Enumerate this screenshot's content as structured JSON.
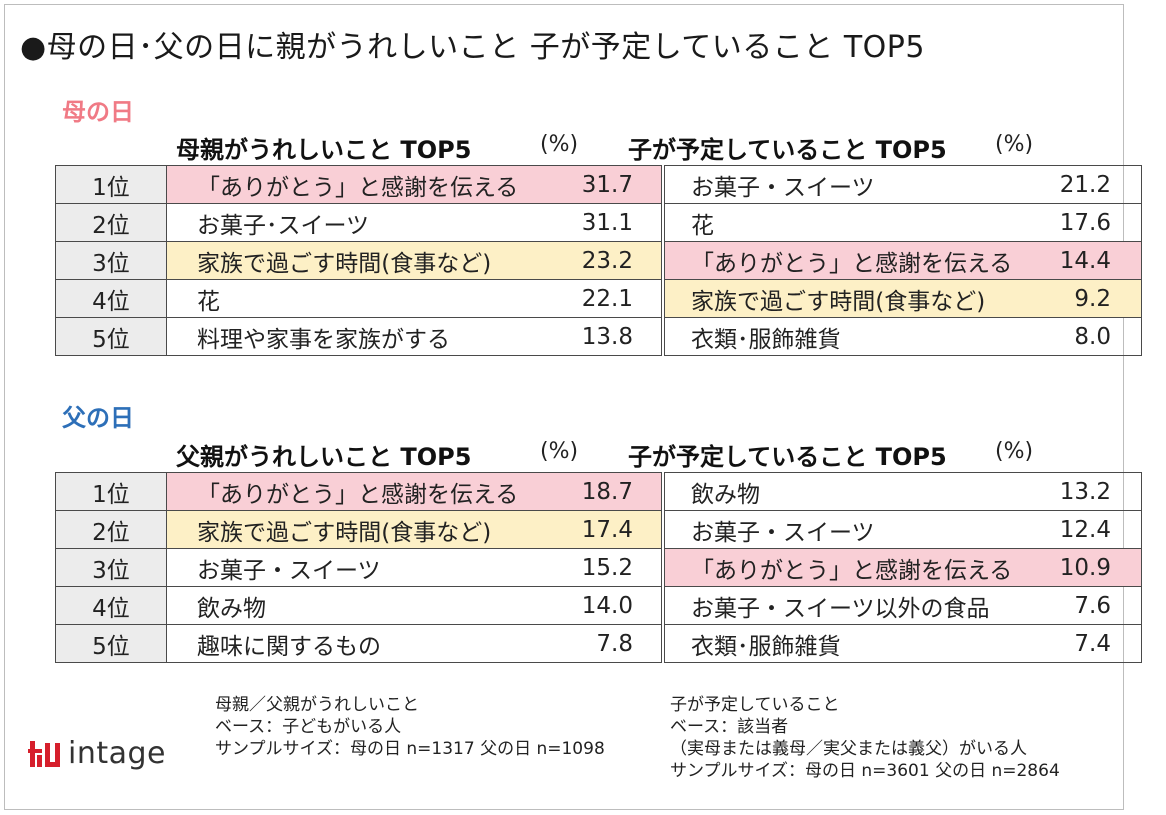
{
  "title": "●母の日･父の日に親がうれしいこと 子が予定していること TOP5",
  "sections": [
    {
      "label": "母の日",
      "left_header": "母親がうれしいこと TOP5",
      "right_header": "子が予定していること TOP5",
      "unit": "(%)",
      "rows": [
        {
          "rank": "1位",
          "parent_item": "「ありがとう」と感謝を伝える",
          "parent_value": "31.7",
          "child_item": "お菓子・スイーツ",
          "child_value": "21.2"
        },
        {
          "rank": "2位",
          "parent_item": "お菓子･スイーツ",
          "parent_value": "31.1",
          "child_item": "花",
          "child_value": "17.6"
        },
        {
          "rank": "3位",
          "parent_item": "家族で過ごす時間(食事など)",
          "parent_value": "23.2",
          "child_item": "「ありがとう」と感謝を伝える",
          "child_value": "14.4"
        },
        {
          "rank": "4位",
          "parent_item": "花",
          "parent_value": "22.1",
          "child_item": "家族で過ごす時間(食事など)",
          "child_value": "9.2"
        },
        {
          "rank": "5位",
          "parent_item": "料理や家事を家族がする",
          "parent_value": "13.8",
          "child_item": "衣類･服飾雑貨",
          "child_value": "8.0"
        }
      ]
    },
    {
      "label": "父の日",
      "left_header": "父親がうれしいこと TOP5",
      "right_header": "子が予定していること TOP5",
      "unit": "(%)",
      "rows": [
        {
          "rank": "1位",
          "parent_item": "「ありがとう」と感謝を伝える",
          "parent_value": "18.7",
          "child_item": "飲み物",
          "child_value": "13.2"
        },
        {
          "rank": "2位",
          "parent_item": "家族で過ごす時間(食事など)",
          "parent_value": "17.4",
          "child_item": "お菓子・スイーツ",
          "child_value": "12.4"
        },
        {
          "rank": "3位",
          "parent_item": "お菓子・スイーツ",
          "parent_value": "15.2",
          "child_item": "「ありがとう」と感謝を伝える",
          "child_value": "10.9"
        },
        {
          "rank": "4位",
          "parent_item": "飲み物",
          "parent_value": "14.0",
          "child_item": "お菓子・スイーツ以外の食品",
          "child_value": "7.6"
        },
        {
          "rank": "5位",
          "parent_item": "趣味に関するもの",
          "parent_value": "7.8",
          "child_item": "衣類･服飾雑貨",
          "child_value": "7.4"
        }
      ]
    }
  ],
  "notes_left": [
    "母親／父親がうれしいこと",
    "ベース：子どもがいる人",
    "サンプルサイズ：母の日 n=1317 父の日 n=1098"
  ],
  "notes_right": [
    "子が予定していること",
    "ベース：該当者",
    "（実母または義母／実父または義父）がいる人",
    "サンプルサイズ：母の日 n=3601 父の日 n=2864"
  ],
  "logo_text": "intage",
  "colors": {
    "highlight_thanks": "#f9cfd6",
    "highlight_family_time": "#fdf0c6",
    "mother_label": "#f07a85",
    "father_label": "#2d6fb8",
    "rank_cell": "#ececec"
  },
  "chart_data": [
    {
      "type": "table",
      "title": "母の日",
      "columns": [
        "順位",
        "母親がうれしいこと TOP5",
        "(%)",
        "子が予定していること TOP5",
        "(%)"
      ],
      "rows": [
        [
          "1位",
          "「ありがとう」と感謝を伝える",
          31.7,
          "お菓子・スイーツ",
          21.2
        ],
        [
          "2位",
          "お菓子･スイーツ",
          31.1,
          "花",
          17.6
        ],
        [
          "3位",
          "家族で過ごす時間(食事など)",
          23.2,
          "「ありがとう」と感謝を伝える",
          14.4
        ],
        [
          "4位",
          "花",
          22.1,
          "家族で過ごす時間(食事など)",
          9.2
        ],
        [
          "5位",
          "料理や家事を家族がする",
          13.8,
          "衣類･服飾雑貨",
          8.0
        ]
      ]
    },
    {
      "type": "table",
      "title": "父の日",
      "columns": [
        "順位",
        "父親がうれしいこと TOP5",
        "(%)",
        "子が予定していること TOP5",
        "(%)"
      ],
      "rows": [
        [
          "1位",
          "「ありがとう」と感謝を伝える",
          18.7,
          "飲み物",
          13.2
        ],
        [
          "2位",
          "家族で過ごす時間(食事など)",
          17.4,
          "お菓子・スイーツ",
          12.4
        ],
        [
          "3位",
          "お菓子・スイーツ",
          15.2,
          "「ありがとう」と感謝を伝える",
          10.9
        ],
        [
          "4位",
          "飲み物",
          14.0,
          "お菓子・スイーツ以外の食品",
          7.6
        ],
        [
          "5位",
          "趣味に関するもの",
          7.8,
          "衣類･服飾雑貨",
          7.4
        ]
      ]
    }
  ]
}
